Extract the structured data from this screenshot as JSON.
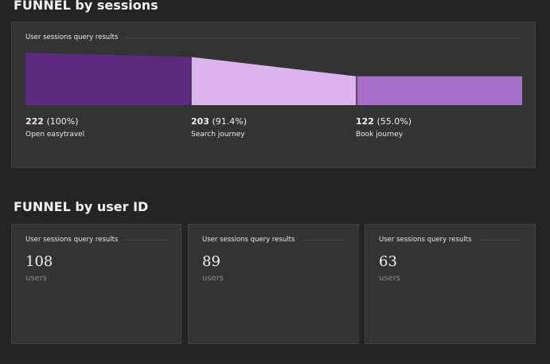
{
  "sessions_section": {
    "title": "FUNNEL by sessions",
    "tile_label": "User sessions query results",
    "steps": [
      {
        "count": "222",
        "percent": "(100%)",
        "name": "Open easytravel",
        "color": "#5e2a80"
      },
      {
        "count": "203",
        "percent": "(91.4%)",
        "name": "Search journey",
        "color": "#dcb5ee"
      },
      {
        "count": "122",
        "percent": "(55.0%)",
        "name": "Book journey",
        "color": "#a56dc9"
      }
    ]
  },
  "users_section": {
    "title": "FUNNEL by user ID",
    "tiles": [
      {
        "label": "User sessions query results",
        "value": "108",
        "unit": "users"
      },
      {
        "label": "User sessions query results",
        "value": "89",
        "unit": "users"
      },
      {
        "label": "User sessions query results",
        "value": "63",
        "unit": "users"
      }
    ]
  },
  "chart_data": {
    "type": "funnel",
    "categories": [
      "Open easytravel",
      "Search journey",
      "Book journey"
    ],
    "values": [
      222,
      203,
      122
    ],
    "percentages": [
      100,
      91.4,
      55.0
    ]
  }
}
